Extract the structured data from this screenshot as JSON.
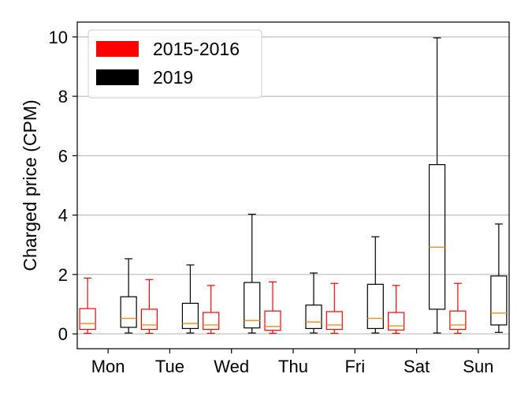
{
  "chart_data": {
    "type": "boxplot",
    "ylabel": "Charged price (CPM)",
    "xlabel": "",
    "title": "",
    "ylim": [
      -0.5,
      10.5
    ],
    "yticks": [
      0,
      2,
      4,
      6,
      8,
      10
    ],
    "grid": "y",
    "legend_position": "top-left",
    "categories": [
      "Mon",
      "Tue",
      "Wed",
      "Thu",
      "Fri",
      "Sat",
      "Sun"
    ],
    "series": [
      {
        "name": "2015-2016",
        "color": "#ff0000",
        "median_color": "#ff8c1a",
        "boxes": [
          {
            "whislo": 0.02,
            "q1": 0.15,
            "med": 0.35,
            "q3": 0.85,
            "whishi": 1.88
          },
          {
            "whislo": 0.02,
            "q1": 0.15,
            "med": 0.3,
            "q3": 0.83,
            "whishi": 1.83
          },
          {
            "whislo": 0.02,
            "q1": 0.15,
            "med": 0.3,
            "q3": 0.72,
            "whishi": 1.63
          },
          {
            "whislo": 0.02,
            "q1": 0.12,
            "med": 0.25,
            "q3": 0.77,
            "whishi": 1.75
          },
          {
            "whislo": 0.02,
            "q1": 0.15,
            "med": 0.3,
            "q3": 0.75,
            "whishi": 1.7
          },
          {
            "whislo": 0.02,
            "q1": 0.13,
            "med": 0.27,
            "q3": 0.72,
            "whishi": 1.63
          },
          {
            "whislo": 0.02,
            "q1": 0.15,
            "med": 0.3,
            "q3": 0.77,
            "whishi": 1.7
          }
        ]
      },
      {
        "name": "2019",
        "color": "#000000",
        "median_color": "#ff8c1a",
        "boxes": [
          {
            "whislo": 0.03,
            "q1": 0.22,
            "med": 0.52,
            "q3": 1.25,
            "whishi": 2.53
          },
          {
            "whislo": 0.03,
            "q1": 0.18,
            "med": 0.35,
            "q3": 1.03,
            "whishi": 2.32
          },
          {
            "whislo": 0.03,
            "q1": 0.2,
            "med": 0.45,
            "q3": 1.73,
            "whishi": 4.03
          },
          {
            "whislo": 0.03,
            "q1": 0.18,
            "med": 0.4,
            "q3": 0.97,
            "whishi": 2.05
          },
          {
            "whislo": 0.03,
            "q1": 0.18,
            "med": 0.52,
            "q3": 1.67,
            "whishi": 3.27
          },
          {
            "whislo": 0.03,
            "q1": 0.83,
            "med": 2.92,
            "q3": 5.7,
            "whishi": 9.97
          },
          {
            "whislo": 0.05,
            "q1": 0.3,
            "med": 0.7,
            "q3": 1.95,
            "whishi": 3.7
          }
        ]
      }
    ]
  }
}
